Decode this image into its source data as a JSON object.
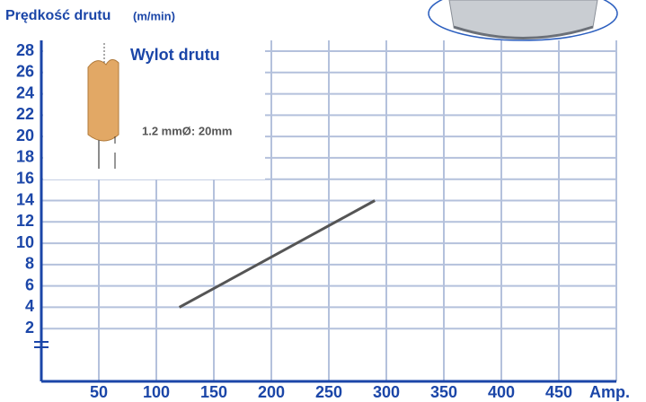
{
  "chart_data": {
    "type": "line",
    "title": "Prędkość drutu",
    "subtitle": "(m/min)",
    "xlabel": "Amp.",
    "annotations": [
      "Wylot drutu",
      "1.2 mmØ: 20mm"
    ],
    "x": [
      120,
      290
    ],
    "values": [
      4,
      14
    ],
    "color": "#555555",
    "xlim": [
      0,
      500
    ],
    "xticks": [
      50,
      100,
      150,
      200,
      250,
      300,
      350,
      400,
      450
    ],
    "ylim": [
      0,
      28
    ],
    "yticks": [
      2,
      4,
      6,
      8,
      10,
      12,
      14,
      16,
      18,
      20,
      22,
      24,
      26,
      28
    ],
    "grid": true
  }
}
